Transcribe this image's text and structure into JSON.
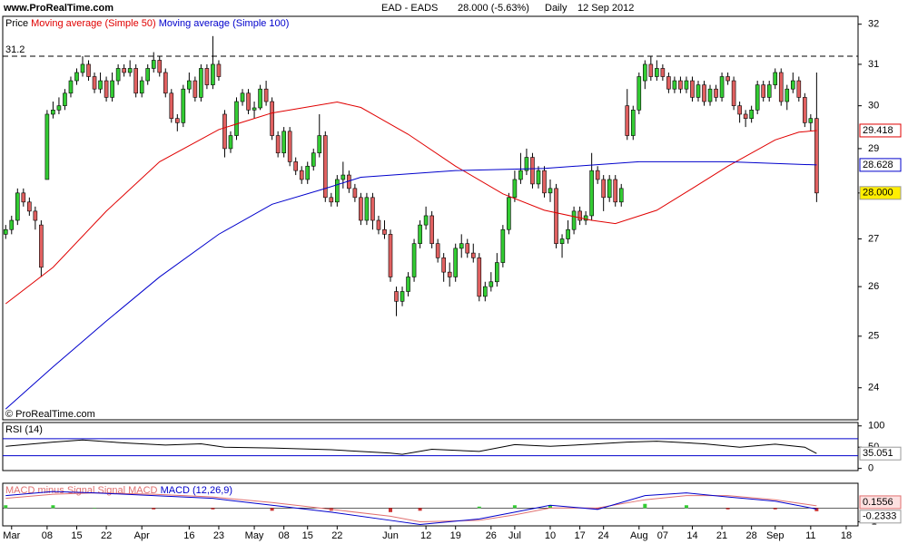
{
  "header": {
    "site": "www.ProRealTime.com",
    "instrument": "EAD - EADS",
    "quote": "28.000 (-5.63%)",
    "period": "Daily",
    "date": "12 Sep 2012"
  },
  "copyright": "© ProRealTime.com",
  "chart_data": [
    {
      "type": "candlestick",
      "legend_label": "Price",
      "log_scale": true,
      "up_color": "#33cc33",
      "down_color": "#e06060",
      "xlim": [
        -0.5,
        144
      ],
      "ylim": [
        23.4,
        32.2
      ],
      "yticks": [
        24,
        25,
        26,
        27,
        28,
        29,
        30,
        31,
        32
      ],
      "hline": 31.2,
      "last_label": "28.000",
      "ohlc": [
        [
          27.1,
          27.3,
          27.0,
          27.2
        ],
        [
          27.2,
          27.5,
          27.1,
          27.4
        ],
        [
          27.4,
          28.1,
          27.3,
          28.0
        ],
        [
          28.0,
          28.1,
          27.7,
          27.8
        ],
        [
          27.8,
          27.9,
          27.5,
          27.6
        ],
        [
          27.6,
          27.7,
          27.2,
          27.4
        ],
        [
          27.3,
          27.4,
          26.2,
          26.4
        ],
        [
          28.3,
          29.9,
          28.3,
          29.8
        ],
        [
          29.8,
          30.1,
          29.7,
          29.9
        ],
        [
          29.9,
          30.2,
          29.8,
          30.0
        ],
        [
          30.0,
          30.4,
          29.9,
          30.3
        ],
        [
          30.3,
          30.7,
          30.2,
          30.6
        ],
        [
          30.6,
          30.9,
          30.5,
          30.8
        ],
        [
          30.8,
          31.2,
          30.7,
          31.0
        ],
        [
          31.0,
          31.1,
          30.6,
          30.7
        ],
        [
          30.7,
          30.8,
          30.3,
          30.4
        ],
        [
          30.4,
          30.8,
          30.3,
          30.6
        ],
        [
          30.6,
          30.7,
          30.1,
          30.2
        ],
        [
          30.2,
          30.8,
          30.1,
          30.6
        ],
        [
          30.6,
          31.0,
          30.5,
          30.9
        ],
        [
          30.9,
          31.0,
          30.7,
          30.8
        ],
        [
          30.8,
          31.1,
          30.7,
          30.9
        ],
        [
          30.9,
          31.0,
          30.2,
          30.3
        ],
        [
          30.3,
          30.7,
          30.2,
          30.6
        ],
        [
          30.6,
          31.0,
          30.5,
          30.9
        ],
        [
          30.9,
          31.3,
          30.8,
          31.1
        ],
        [
          31.1,
          31.2,
          30.7,
          30.8
        ],
        [
          30.8,
          30.9,
          30.2,
          30.3
        ],
        [
          30.3,
          30.4,
          29.6,
          29.7
        ],
        [
          29.7,
          29.8,
          29.4,
          29.6
        ],
        [
          29.6,
          30.5,
          29.5,
          30.4
        ],
        [
          30.4,
          30.8,
          30.3,
          30.6
        ],
        [
          30.6,
          30.7,
          30.1,
          30.2
        ],
        [
          30.2,
          31.0,
          30.1,
          30.9
        ],
        [
          30.9,
          31.0,
          30.4,
          30.5
        ],
        [
          30.5,
          31.7,
          30.4,
          31.0
        ],
        [
          31.0,
          31.1,
          30.6,
          30.7
        ],
        [
          29.8,
          29.9,
          28.8,
          29.0
        ],
        [
          29.0,
          29.4,
          28.9,
          29.3
        ],
        [
          29.3,
          30.2,
          29.2,
          30.1
        ],
        [
          30.1,
          30.4,
          30.0,
          30.3
        ],
        [
          30.3,
          30.4,
          29.8,
          29.9
        ],
        [
          29.9,
          30.1,
          29.7,
          29.95
        ],
        [
          29.95,
          30.5,
          29.9,
          30.4
        ],
        [
          30.4,
          30.6,
          30.0,
          30.1
        ],
        [
          30.1,
          30.2,
          29.2,
          29.3
        ],
        [
          29.3,
          29.4,
          28.8,
          28.9
        ],
        [
          28.9,
          29.5,
          28.8,
          29.4
        ],
        [
          29.4,
          29.5,
          28.6,
          28.7
        ],
        [
          28.7,
          28.8,
          28.4,
          28.5
        ],
        [
          28.5,
          28.6,
          28.2,
          28.3
        ],
        [
          28.3,
          28.7,
          28.2,
          28.6
        ],
        [
          28.6,
          29.0,
          28.5,
          28.9
        ],
        [
          28.9,
          29.8,
          28.8,
          29.3
        ],
        [
          29.3,
          29.4,
          27.8,
          27.9
        ],
        [
          27.9,
          28.0,
          27.7,
          27.8
        ],
        [
          27.8,
          28.4,
          27.7,
          28.3
        ],
        [
          28.3,
          28.7,
          28.1,
          28.4
        ],
        [
          28.4,
          28.5,
          28.0,
          28.1
        ],
        [
          28.1,
          28.2,
          27.8,
          27.9
        ],
        [
          27.9,
          28.0,
          27.3,
          27.4
        ],
        [
          27.4,
          28.0,
          27.3,
          27.9
        ],
        [
          27.9,
          28.0,
          27.2,
          27.4
        ],
        [
          27.4,
          27.5,
          27.1,
          27.2
        ],
        [
          27.2,
          27.4,
          27.0,
          27.1
        ],
        [
          27.1,
          27.2,
          26.1,
          26.2
        ],
        [
          25.9,
          26.0,
          25.4,
          25.7
        ],
        [
          25.7,
          26.0,
          25.6,
          25.9
        ],
        [
          25.9,
          26.3,
          25.8,
          26.2
        ],
        [
          26.2,
          27.0,
          26.1,
          26.9
        ],
        [
          26.9,
          27.4,
          26.8,
          27.3
        ],
        [
          27.3,
          27.7,
          27.2,
          27.5
        ],
        [
          27.5,
          27.6,
          26.8,
          26.9
        ],
        [
          26.9,
          27.0,
          26.5,
          26.6
        ],
        [
          26.6,
          26.7,
          26.1,
          26.3
        ],
        [
          26.3,
          26.5,
          26.0,
          26.2
        ],
        [
          26.2,
          26.9,
          26.1,
          26.8
        ],
        [
          26.8,
          27.1,
          26.6,
          26.9
        ],
        [
          26.9,
          27.0,
          26.6,
          26.7
        ],
        [
          26.7,
          26.9,
          26.5,
          26.6
        ],
        [
          26.6,
          26.7,
          25.7,
          25.8
        ],
        [
          25.8,
          26.1,
          25.7,
          26.0
        ],
        [
          26.0,
          26.3,
          25.9,
          26.1
        ],
        [
          26.1,
          26.7,
          26.0,
          26.5
        ],
        [
          26.5,
          27.3,
          26.4,
          27.2
        ],
        [
          27.2,
          28.0,
          27.1,
          27.9
        ],
        [
          27.9,
          28.5,
          27.8,
          28.3
        ],
        [
          28.3,
          28.9,
          28.2,
          28.5
        ],
        [
          28.5,
          29.0,
          28.4,
          28.8
        ],
        [
          28.8,
          28.9,
          28.1,
          28.2
        ],
        [
          28.2,
          28.6,
          28.1,
          28.5
        ],
        [
          28.5,
          28.6,
          27.9,
          28.0
        ],
        [
          28.0,
          28.3,
          27.8,
          28.1
        ],
        [
          28.1,
          28.2,
          26.8,
          26.9
        ],
        [
          26.9,
          27.1,
          26.6,
          27.0
        ],
        [
          27.0,
          27.4,
          26.9,
          27.2
        ],
        [
          27.2,
          27.7,
          27.1,
          27.6
        ],
        [
          27.6,
          27.7,
          27.3,
          27.4
        ],
        [
          27.4,
          27.6,
          27.3,
          27.5
        ],
        [
          27.5,
          28.9,
          27.4,
          28.5
        ],
        [
          28.5,
          28.6,
          28.2,
          28.3
        ],
        [
          28.3,
          28.4,
          27.6,
          27.9
        ],
        [
          27.9,
          28.4,
          27.8,
          28.3
        ],
        [
          28.3,
          28.4,
          27.7,
          27.8
        ],
        [
          27.8,
          28.2,
          27.7,
          28.1
        ],
        [
          30.0,
          30.4,
          29.2,
          29.3
        ],
        [
          29.3,
          30.0,
          29.2,
          29.9
        ],
        [
          29.9,
          30.8,
          29.8,
          30.7
        ],
        [
          30.6,
          31.1,
          30.4,
          31.0
        ],
        [
          31.0,
          31.2,
          30.6,
          30.7
        ],
        [
          30.7,
          31.1,
          30.6,
          30.9
        ],
        [
          30.9,
          31.0,
          30.6,
          30.7
        ],
        [
          30.7,
          30.8,
          30.3,
          30.4
        ],
        [
          30.4,
          30.7,
          30.3,
          30.6
        ],
        [
          30.6,
          30.7,
          30.3,
          30.4
        ],
        [
          30.4,
          30.7,
          30.3,
          30.6
        ],
        [
          30.6,
          30.7,
          30.1,
          30.2
        ],
        [
          30.2,
          30.6,
          30.1,
          30.5
        ],
        [
          30.5,
          30.6,
          30.0,
          30.1
        ],
        [
          30.1,
          30.5,
          30.0,
          30.4
        ],
        [
          30.4,
          30.5,
          30.1,
          30.2
        ],
        [
          30.2,
          30.8,
          30.1,
          30.7
        ],
        [
          30.7,
          30.8,
          30.5,
          30.6
        ],
        [
          30.6,
          30.7,
          29.9,
          30.0
        ],
        [
          30.0,
          30.1,
          29.6,
          29.8
        ],
        [
          29.8,
          29.9,
          29.5,
          29.7
        ],
        [
          29.7,
          30.0,
          29.6,
          29.9
        ],
        [
          29.9,
          30.6,
          29.8,
          30.5
        ],
        [
          30.5,
          30.6,
          30.1,
          30.2
        ],
        [
          30.2,
          30.6,
          30.1,
          30.5
        ],
        [
          30.5,
          30.9,
          30.4,
          30.8
        ],
        [
          30.8,
          30.9,
          30.0,
          30.1
        ],
        [
          30.1,
          30.5,
          29.9,
          30.4
        ],
        [
          30.4,
          30.8,
          30.3,
          30.6
        ],
        [
          30.6,
          30.7,
          30.1,
          30.2
        ],
        [
          30.2,
          30.3,
          29.5,
          29.6
        ],
        [
          29.6,
          29.8,
          29.4,
          29.7
        ],
        [
          29.7,
          30.8,
          27.8,
          28.0
        ]
      ],
      "series": [
        {
          "name": "Moving average (Simple 50)",
          "color": "#e00000",
          "x": [
            0,
            8,
            17,
            26,
            36,
            45,
            56,
            60,
            68,
            76,
            84,
            91,
            99,
            103,
            110,
            116,
            122,
            130,
            134,
            137
          ],
          "values": [
            25.65,
            26.4,
            27.6,
            28.7,
            29.44,
            29.83,
            30.09,
            29.96,
            29.33,
            28.6,
            27.98,
            27.62,
            27.4,
            27.33,
            27.62,
            28.1,
            28.6,
            29.2,
            29.38,
            29.418
          ]
        },
        {
          "name": "Moving average (Simple 100)",
          "color": "#0000cc",
          "x": [
            0,
            8,
            17,
            26,
            36,
            45,
            54,
            60,
            76,
            91,
            107,
            122,
            137
          ],
          "values": [
            23.6,
            24.4,
            25.3,
            26.2,
            27.1,
            27.75,
            28.1,
            28.35,
            28.5,
            28.55,
            28.7,
            28.7,
            28.628
          ]
        }
      ]
    },
    {
      "type": "line",
      "title": "RSI (14)",
      "color": "#000000",
      "level_color": "#0000cc",
      "xlim": [
        -0.5,
        144
      ],
      "ylim": [
        -5,
        108
      ],
      "yticks": [
        0,
        50,
        100
      ],
      "levels": [
        70,
        30
      ],
      "x": [
        0,
        8,
        13,
        20,
        27,
        33,
        37,
        45,
        55,
        65,
        67,
        72,
        80,
        86,
        92,
        99,
        105,
        110,
        118,
        124,
        130,
        135,
        137
      ],
      "values": [
        52,
        62,
        67,
        60,
        55,
        58,
        50,
        48,
        44,
        36,
        33,
        45,
        40,
        56,
        52,
        57,
        62,
        64,
        58,
        50,
        57,
        50,
        35.051
      ]
    },
    {
      "type": "macd",
      "xlim": [
        -0.5,
        144
      ],
      "ylim": [
        -1.3,
        1.8
      ],
      "yticks": [
        -1
      ],
      "xticks": [
        {
          "value": 1,
          "label": "Mar"
        },
        {
          "value": 7,
          "label": "08"
        },
        {
          "value": 12,
          "label": "15"
        },
        {
          "value": 17,
          "label": "22"
        },
        {
          "value": 23,
          "label": "Apr"
        },
        {
          "value": 31,
          "label": "16"
        },
        {
          "value": 36,
          "label": "23"
        },
        {
          "value": 42,
          "label": "May"
        },
        {
          "value": 47,
          "label": "08"
        },
        {
          "value": 51,
          "label": "15"
        },
        {
          "value": 56,
          "label": "22"
        },
        {
          "value": 65,
          "label": "Jun"
        },
        {
          "value": 71,
          "label": "12"
        },
        {
          "value": 76,
          "label": "19"
        },
        {
          "value": 82,
          "label": "26"
        },
        {
          "value": 86,
          "label": "Jul"
        },
        {
          "value": 92,
          "label": "10"
        },
        {
          "value": 97,
          "label": "17"
        },
        {
          "value": 101,
          "label": "24"
        },
        {
          "value": 107,
          "label": "Aug"
        },
        {
          "value": 111,
          "label": "07"
        },
        {
          "value": 116,
          "label": "14"
        },
        {
          "value": 121,
          "label": "21"
        },
        {
          "value": 126,
          "label": "28"
        },
        {
          "value": 130,
          "label": "Sep"
        },
        {
          "value": 136,
          "label": "11"
        },
        {
          "value": 142,
          "label": "18"
        }
      ],
      "x": [
        0,
        8,
        15,
        25,
        35,
        45,
        55,
        65,
        70,
        80,
        86,
        92,
        100,
        108,
        115,
        122,
        130,
        137
      ],
      "series": [
        {
          "name": "MACD minus Signal",
          "kind": "bar",
          "color": "#33cc33",
          "negative_color": "#cc3333",
          "values": [
            0.2,
            0.2,
            0,
            -0.1,
            -0.1,
            -0.2,
            -0.2,
            -0.3,
            -0.2,
            0.1,
            0.2,
            0.2,
            -0.1,
            0.3,
            0.2,
            -0.1,
            -0.1,
            -0.2333
          ]
        },
        {
          "name": "Signal MACD",
          "kind": "line",
          "color": "#e07070",
          "values": [
            0.7,
            1.0,
            1.1,
            1.0,
            0.8,
            0.4,
            -0.1,
            -0.6,
            -1.0,
            -0.9,
            -0.5,
            0.0,
            0.0,
            0.6,
            0.9,
            0.9,
            0.6,
            0.1556
          ]
        },
        {
          "name": "MACD (12,26,9)",
          "kind": "line",
          "color": "#0000cc",
          "values": [
            0.9,
            1.2,
            1.1,
            0.9,
            0.7,
            0.2,
            -0.3,
            -0.9,
            -1.2,
            -0.8,
            -0.3,
            0.2,
            -0.1,
            0.9,
            1.1,
            0.8,
            0.5,
            -0.0777
          ]
        }
      ]
    }
  ]
}
